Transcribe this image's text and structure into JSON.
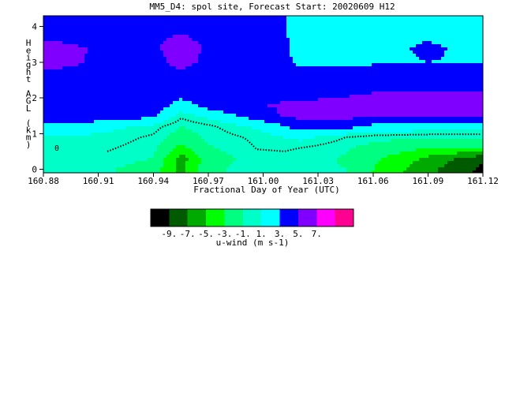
{
  "chart_data": {
    "type": "heatmap",
    "title": "MM5_D4: spol site,  Forecast Start: 20020609 H12",
    "xlabel": "Fractional Day of Year (UTC)",
    "ylabel": "Height AGL (km)",
    "xlim": [
      160.88,
      161.12
    ],
    "ylim": [
      -0.1,
      4.3
    ],
    "x_tick_labels": [
      "160.88",
      "160.91",
      "160.94",
      "160.97",
      "161.00",
      "161.03",
      "161.06",
      "161.09",
      "161.12"
    ],
    "y_tick_labels": [
      "0",
      "1",
      "2",
      "3",
      "4"
    ],
    "zero_contour_label": "0",
    "colorbar": {
      "label": "u-wind (m s-1)",
      "tick_labels": [
        "-9.",
        "-7.",
        "-5.",
        "-3.",
        "-1.",
        "1.",
        "3.",
        "5.",
        "7."
      ],
      "levels": [
        -11,
        -9,
        -7,
        -5,
        -3,
        -1,
        1,
        3,
        5,
        7
      ],
      "colors": [
        "#000000",
        "#005a00",
        "#00aa00",
        "#00ff00",
        "#00ff80",
        "#00ffc8",
        "#00ffff",
        "#0000ff",
        "#8000ff",
        "#ff00ff",
        "#ff0090"
      ]
    },
    "x": [
      160.88,
      160.91,
      160.94,
      160.955,
      160.97,
      161.0,
      161.02,
      161.045,
      161.06,
      161.09,
      161.12
    ],
    "y": [
      0.0,
      0.3,
      0.6,
      0.9,
      1.2,
      1.5,
      1.8,
      2.2,
      2.6,
      3.0,
      3.4,
      3.8,
      4.2
    ],
    "z": [
      [
        0.2,
        -0.5,
        -2.0,
        -5.6,
        -1.5,
        0.1,
        -0.5,
        -1.0,
        -3.0,
        -6.5,
        -9.5
      ],
      [
        0.4,
        -0.2,
        -1.0,
        -6.0,
        -2.0,
        0.0,
        -0.3,
        -1.2,
        -2.5,
        -5.5,
        -8.5
      ],
      [
        0.6,
        0.3,
        -0.6,
        -3.5,
        -1.2,
        0.2,
        0.0,
        -0.8,
        -1.5,
        -2.8,
        -3.2
      ],
      [
        0.8,
        0.7,
        -0.2,
        -1.8,
        -0.7,
        0.4,
        1.5,
        0.0,
        -0.5,
        -0.8,
        -0.8
      ],
      [
        2.0,
        1.7,
        0.5,
        -1.0,
        -0.3,
        1.5,
        4.0,
        3.8,
        2.5,
        2.2,
        2.0
      ],
      [
        4.6,
        4.5,
        3.5,
        0.3,
        1.5,
        4.5,
        5.6,
        5.6,
        5.3,
        5.4,
        5.4
      ],
      [
        4.6,
        4.6,
        4.5,
        2.0,
        4.0,
        5.0,
        5.2,
        5.4,
        5.6,
        5.6,
        5.6
      ],
      [
        4.2,
        4.1,
        4.6,
        4.5,
        4.2,
        4.6,
        4.5,
        4.7,
        4.9,
        5.0,
        5.0
      ],
      [
        4.6,
        4.4,
        4.5,
        4.7,
        4.4,
        4.2,
        3.8,
        4.0,
        4.0,
        4.2,
        4.2
      ],
      [
        5.6,
        4.8,
        4.6,
        5.4,
        4.7,
        4.5,
        2.6,
        2.4,
        2.8,
        3.0,
        2.9
      ],
      [
        5.4,
        4.9,
        4.8,
        5.6,
        4.8,
        4.6,
        2.4,
        2.3,
        2.6,
        3.2,
        2.6
      ],
      [
        4.6,
        4.6,
        4.7,
        5.0,
        4.6,
        4.6,
        2.2,
        2.0,
        2.2,
        2.8,
        2.2
      ],
      [
        4.5,
        4.5,
        4.6,
        4.8,
        4.5,
        4.6,
        2.2,
        1.8,
        2.0,
        2.6,
        1.8
      ]
    ]
  }
}
